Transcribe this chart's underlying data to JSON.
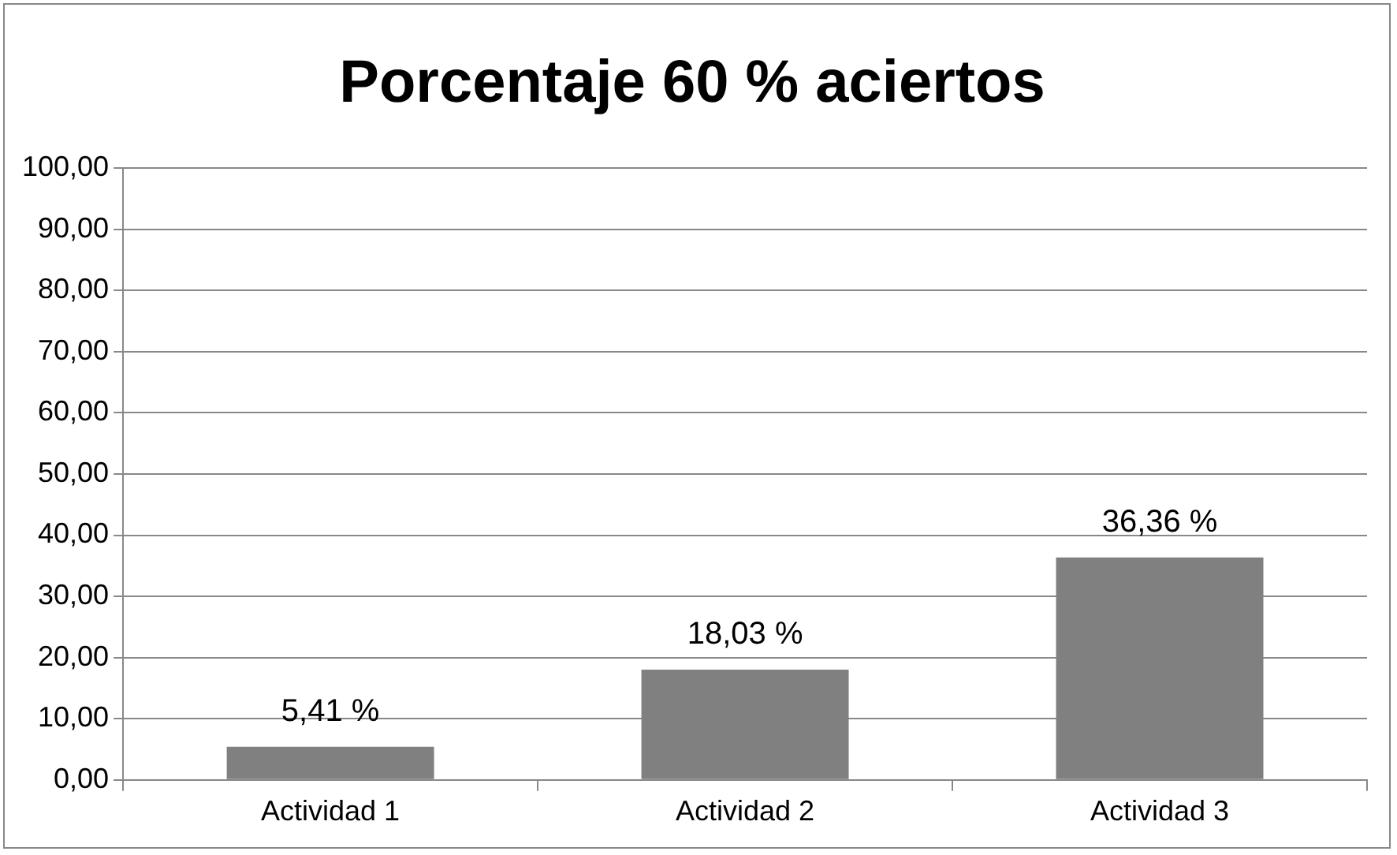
{
  "chart_data": {
    "type": "bar",
    "title": "Porcentaje 60 % aciertos",
    "categories": [
      "Actividad 1",
      "Actividad 2",
      "Actividad 3"
    ],
    "values": [
      5.41,
      18.03,
      36.36
    ],
    "value_labels": [
      "5,41 %",
      "18,03 %",
      "36,36 %"
    ],
    "color": "#808080",
    "ylim": [
      0,
      100
    ],
    "yticks": [
      {
        "value": 0,
        "label": "0,00"
      },
      {
        "value": 10,
        "label": "10,00"
      },
      {
        "value": 20,
        "label": "20,00"
      },
      {
        "value": 30,
        "label": "30,00"
      },
      {
        "value": 40,
        "label": "40,00"
      },
      {
        "value": 50,
        "label": "50,00"
      },
      {
        "value": 60,
        "label": "60,00"
      },
      {
        "value": 70,
        "label": "70,00"
      },
      {
        "value": 80,
        "label": "80,00"
      },
      {
        "value": 90,
        "label": "90,00"
      },
      {
        "value": 100,
        "label": "100,00"
      }
    ],
    "grid": "y",
    "legend": false
  }
}
